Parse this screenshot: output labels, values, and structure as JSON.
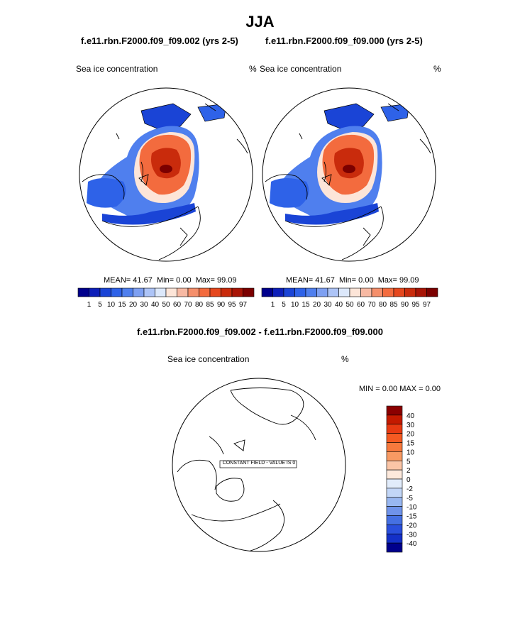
{
  "title": "JJA",
  "panels": [
    {
      "case": "f.e11.rbn.F2000.f09_f09.002 (yrs 2-5)",
      "variable": "Sea ice concentration",
      "units": "%",
      "stats": {
        "mean": "41.67",
        "min": "0.00",
        "max": "99.09"
      }
    },
    {
      "case": "f.e11.rbn.F2000.f09_f09.000 (yrs 2-5)",
      "variable": "Sea ice concentration",
      "units": "%",
      "stats": {
        "mean": "41.67",
        "min": "0.00",
        "max": "99.09"
      }
    }
  ],
  "stat_labels": {
    "mean": "MEAN=",
    "min": "Min=",
    "max": "Max="
  },
  "colorbar": {
    "levels": [
      "1",
      "5",
      "10",
      "15",
      "20",
      "30",
      "40",
      "50",
      "60",
      "70",
      "80",
      "85",
      "90",
      "95",
      "97"
    ],
    "colors": [
      "#00008c",
      "#0d1fb9",
      "#1a44d6",
      "#2e62e8",
      "#4f7fee",
      "#7ea0f2",
      "#adc4f7",
      "#dce8fb",
      "#fde5d8",
      "#f7b9a3",
      "#f58f6b",
      "#f36b3e",
      "#e5471d",
      "#c92b0c",
      "#a81406",
      "#7b0000"
    ]
  },
  "difference": {
    "title": "f.e11.rbn.F2000.f09_f09.002 - f.e11.rbn.F2000.f09_f09.000",
    "variable": "Sea ice concentration",
    "units": "%",
    "min_label": "MIN =",
    "min": "0.00",
    "max_label": "MAX =",
    "max": "0.00",
    "constant_note": "CONSTANT FIELD - VALUE IS 0",
    "colorbar": {
      "labels": [
        "40",
        "30",
        "20",
        "15",
        "10",
        "5",
        "2",
        "0",
        "-2",
        "-5",
        "-10",
        "-15",
        "-20",
        "-30",
        "-40"
      ],
      "colors": [
        "#8b0000",
        "#c41a00",
        "#e83a12",
        "#f55a22",
        "#f7793d",
        "#f89a63",
        "#fbc5a6",
        "#fde9dc",
        "#e1ecfb",
        "#c2d6f7",
        "#98b7f1",
        "#6f93ea",
        "#4570e2",
        "#2a4fdc",
        "#1430c8",
        "#00008c"
      ]
    }
  }
}
